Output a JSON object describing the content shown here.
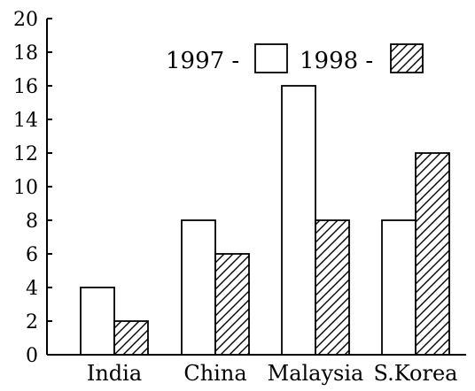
{
  "chart_data": {
    "type": "bar",
    "categories": [
      "India",
      "China",
      "Malaysia",
      "S.Korea"
    ],
    "series": [
      {
        "name": "1997",
        "values": [
          4,
          8,
          16,
          8
        ],
        "fill": "white"
      },
      {
        "name": "1998",
        "values": [
          2,
          6,
          8,
          12
        ],
        "fill": "hatched"
      }
    ],
    "ylim": [
      0,
      20
    ],
    "yticks": [
      0,
      2,
      4,
      6,
      8,
      10,
      12,
      14,
      16,
      18,
      20
    ],
    "legend_placement": "top-right",
    "legend_items": [
      "1997 -",
      "1998 -"
    ],
    "colors": {
      "stroke": "#000000",
      "background": "#ffffff"
    },
    "grid": false
  }
}
